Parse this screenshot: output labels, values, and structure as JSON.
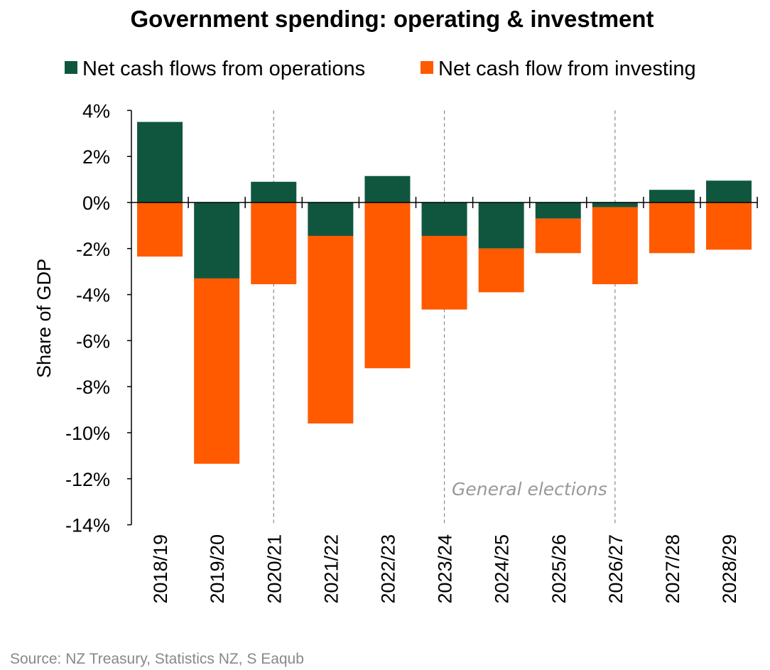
{
  "chart_data": {
    "type": "bar",
    "stacked": true,
    "title": "Government spending: operating & investment",
    "xlabel": "",
    "ylabel": "Share of GDP",
    "ylim": [
      -14,
      4
    ],
    "yticks": [
      "4%",
      "2%",
      "0%",
      "-2%",
      "-4%",
      "-6%",
      "-8%",
      "-10%",
      "-12%",
      "-14%"
    ],
    "ytick_values": [
      4,
      2,
      0,
      -2,
      -4,
      -6,
      -8,
      -10,
      -12,
      -14
    ],
    "categories": [
      "2018/19",
      "2019/20",
      "2020/21",
      "2021/22",
      "2022/23",
      "2023/24",
      "2024/25",
      "2025/26",
      "2026/27",
      "2027/28",
      "2028/29"
    ],
    "series": [
      {
        "name": "Net cash flows from operations",
        "color": "#10563f",
        "values": [
          3.5,
          -3.3,
          0.9,
          -1.45,
          1.15,
          -1.45,
          -2.0,
          -0.7,
          -0.2,
          0.55,
          0.95
        ]
      },
      {
        "name": "Net cash flow from investing",
        "color": "#ff5a00",
        "values": [
          -2.35,
          -8.05,
          -3.55,
          -8.15,
          -7.2,
          -3.2,
          -1.9,
          -1.5,
          -3.35,
          -2.2,
          -2.05
        ]
      }
    ],
    "legend_position": "top",
    "annotations": {
      "election_label": "General elections",
      "election_years": [
        "2020/21",
        "2023/24",
        "2026/27"
      ]
    },
    "source": "Source: NZ Treasury, Statistics NZ, S Eaqub"
  }
}
